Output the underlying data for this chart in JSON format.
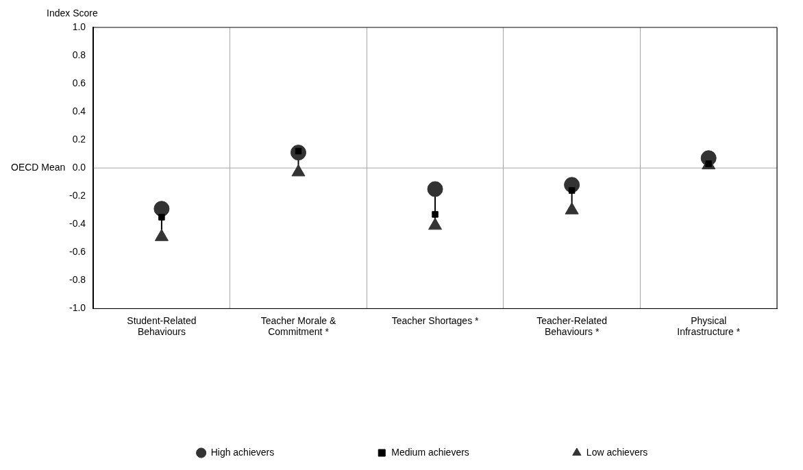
{
  "chart_data": {
    "type": "scatter",
    "ylabel": "Index Score",
    "categories": [
      "Student-Related Behaviours",
      "Teacher Morale & Commitment *",
      "Teacher Shortages *",
      "Teacher-Related Behaviours *",
      "Physical Infrastructure *"
    ],
    "series": [
      {
        "name": "High achievers",
        "color": "#333333",
        "marker": "circle",
        "values": [
          -0.29,
          0.11,
          -0.15,
          -0.12,
          0.07
        ]
      },
      {
        "name": "Medium achievers",
        "color": "#000000",
        "marker": "square",
        "values": [
          -0.35,
          0.12,
          -0.33,
          -0.16,
          0.03
        ]
      },
      {
        "name": "Low achievers",
        "color": "#333333",
        "marker": "triangle",
        "values": [
          -0.49,
          -0.03,
          -0.41,
          -0.3,
          0.02
        ]
      }
    ],
    "ylim": [
      -1.0,
      1.0
    ],
    "yticks": [
      {
        "value": 1.0,
        "label": "1.0"
      },
      0.8,
      0.6,
      0.4,
      0.2,
      {
        "value": 0,
        "label": "0.0"
      },
      -0.2,
      -0.4,
      -0.6,
      -0.8,
      {
        "value": -1.0,
        "label": "-1.0"
      }
    ],
    "ref_lines": [
      {
        "axis": "y",
        "value": 0,
        "label": "OECD Mean",
        "color": "#a6a6a6"
      }
    ],
    "grid": "x",
    "legend": "bottom"
  }
}
